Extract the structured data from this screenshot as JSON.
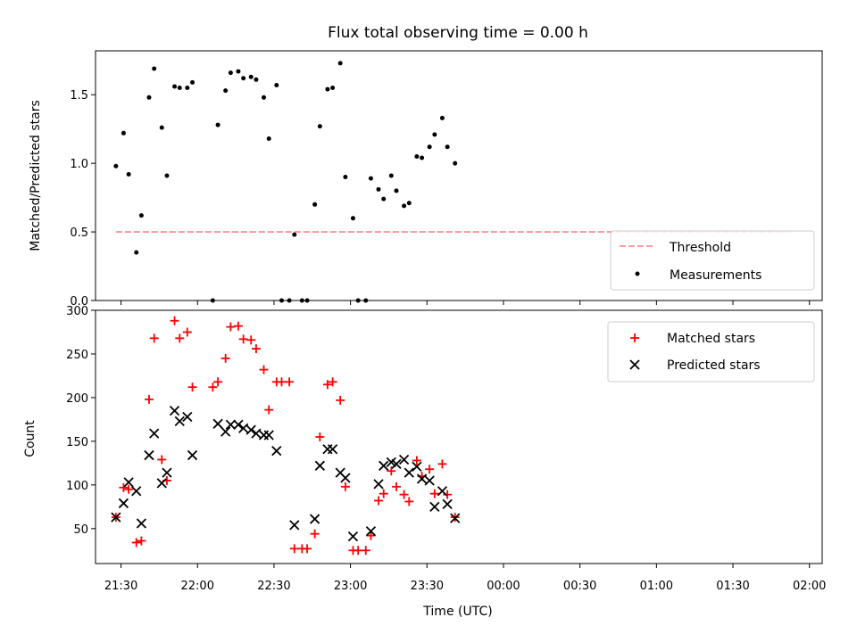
{
  "chart_data": [
    {
      "type": "scatter",
      "title": "Flux total observing time = 0.00 h",
      "xlabel": "",
      "ylabel": "Matched/Predicted stars",
      "ylim": [
        0,
        1.82
      ],
      "yticks": [
        0.0,
        0.5,
        1.0,
        1.5
      ],
      "xlim": [
        "21:20",
        "02:05"
      ],
      "grid": false,
      "legend_position": "lower-right",
      "series": [
        {
          "name": "Threshold",
          "kind": "dashed-line",
          "color": "#ff8080",
          "points": [
            [
              "21:28",
              0.5
            ],
            [
              "01:53",
              0.5
            ]
          ]
        },
        {
          "name": "Measurements",
          "kind": "points",
          "color": "#000000",
          "points": [
            [
              "21:28",
              0.98
            ],
            [
              "21:31",
              1.22
            ],
            [
              "21:33",
              0.92
            ],
            [
              "21:36",
              0.35
            ],
            [
              "21:38",
              0.62
            ],
            [
              "21:41",
              1.48
            ],
            [
              "21:43",
              1.69
            ],
            [
              "21:46",
              1.26
            ],
            [
              "21:48",
              0.91
            ],
            [
              "21:51",
              1.56
            ],
            [
              "21:53",
              1.55
            ],
            [
              "21:56",
              1.55
            ],
            [
              "21:58",
              1.59
            ],
            [
              "22:06",
              0.0
            ],
            [
              "22:08",
              1.28
            ],
            [
              "22:11",
              1.53
            ],
            [
              "22:13",
              1.66
            ],
            [
              "22:16",
              1.67
            ],
            [
              "22:18",
              1.62
            ],
            [
              "22:21",
              1.63
            ],
            [
              "22:23",
              1.61
            ],
            [
              "22:26",
              1.48
            ],
            [
              "22:28",
              1.18
            ],
            [
              "22:31",
              1.57
            ],
            [
              "22:33",
              0.0
            ],
            [
              "22:36",
              0.0
            ],
            [
              "22:38",
              0.48
            ],
            [
              "22:41",
              0.0
            ],
            [
              "22:43",
              0.0
            ],
            [
              "22:46",
              0.7
            ],
            [
              "22:48",
              1.27
            ],
            [
              "22:51",
              1.54
            ],
            [
              "22:53",
              1.55
            ],
            [
              "22:56",
              1.73
            ],
            [
              "22:58",
              0.9
            ],
            [
              "23:01",
              0.6
            ],
            [
              "23:03",
              0.0
            ],
            [
              "23:06",
              0.0
            ],
            [
              "23:08",
              0.89
            ],
            [
              "23:11",
              0.81
            ],
            [
              "23:13",
              0.74
            ],
            [
              "23:16",
              0.91
            ],
            [
              "23:18",
              0.8
            ],
            [
              "23:21",
              0.69
            ],
            [
              "23:23",
              0.71
            ],
            [
              "23:26",
              1.05
            ],
            [
              "23:28",
              1.04
            ],
            [
              "23:31",
              1.12
            ],
            [
              "23:33",
              1.21
            ],
            [
              "23:36",
              1.33
            ],
            [
              "23:38",
              1.12
            ],
            [
              "23:41",
              1.0
            ]
          ]
        }
      ]
    },
    {
      "type": "scatter",
      "title": "",
      "xlabel": "Time (UTC)",
      "ylabel": "Count",
      "ylim": [
        10,
        300
      ],
      "yticks": [
        50,
        100,
        150,
        200,
        250,
        300
      ],
      "xlim": [
        "21:20",
        "02:05"
      ],
      "xticks": [
        "21:30",
        "22:00",
        "22:30",
        "23:00",
        "23:30",
        "00:00",
        "00:30",
        "01:00",
        "01:30",
        "02:00"
      ],
      "grid": false,
      "legend_position": "upper-right",
      "series": [
        {
          "name": "Matched stars",
          "marker": "plus",
          "color": "#ff0000",
          "points": [
            [
              "21:28",
              63
            ],
            [
              "21:31",
              97
            ],
            [
              "21:33",
              95
            ],
            [
              "21:36",
              34
            ],
            [
              "21:38",
              36
            ],
            [
              "21:41",
              198
            ],
            [
              "21:43",
              268
            ],
            [
              "21:46",
              129
            ],
            [
              "21:48",
              105
            ],
            [
              "21:51",
              288
            ],
            [
              "21:53",
              268
            ],
            [
              "21:56",
              275
            ],
            [
              "21:58",
              212
            ],
            [
              "22:06",
              212
            ],
            [
              "22:08",
              218
            ],
            [
              "22:11",
              245
            ],
            [
              "22:13",
              281
            ],
            [
              "22:16",
              282
            ],
            [
              "22:18",
              267
            ],
            [
              "22:21",
              266
            ],
            [
              "22:23",
              256
            ],
            [
              "22:26",
              232
            ],
            [
              "22:28",
              186
            ],
            [
              "22:31",
              218
            ],
            [
              "22:33",
              218
            ],
            [
              "22:36",
              218
            ],
            [
              "22:38",
              27
            ],
            [
              "22:41",
              27
            ],
            [
              "22:43",
              27
            ],
            [
              "22:46",
              44
            ],
            [
              "22:48",
              155
            ],
            [
              "22:51",
              215
            ],
            [
              "22:53",
              218
            ],
            [
              "22:56",
              197
            ],
            [
              "22:58",
              98
            ],
            [
              "23:01",
              25
            ],
            [
              "23:03",
              25
            ],
            [
              "23:06",
              25
            ],
            [
              "23:08",
              42
            ],
            [
              "23:11",
              82
            ],
            [
              "23:13",
              90
            ],
            [
              "23:16",
              116
            ],
            [
              "23:18",
              98
            ],
            [
              "23:21",
              89
            ],
            [
              "23:23",
              81
            ],
            [
              "23:26",
              128
            ],
            [
              "23:28",
              110
            ],
            [
              "23:31",
              118
            ],
            [
              "23:33",
              90
            ],
            [
              "23:36",
              124
            ],
            [
              "23:38",
              89
            ],
            [
              "23:41",
              63
            ]
          ]
        },
        {
          "name": "Predicted stars",
          "marker": "x",
          "color": "#000000",
          "points": [
            [
              "21:28",
              63
            ],
            [
              "21:31",
              79
            ],
            [
              "21:33",
              103
            ],
            [
              "21:36",
              93
            ],
            [
              "21:38",
              56
            ],
            [
              "21:41",
              134
            ],
            [
              "21:43",
              159
            ],
            [
              "21:46",
              102
            ],
            [
              "21:48",
              114
            ],
            [
              "21:51",
              185
            ],
            [
              "21:53",
              173
            ],
            [
              "21:56",
              178
            ],
            [
              "21:58",
              134
            ],
            [
              "22:08",
              170
            ],
            [
              "22:11",
              161
            ],
            [
              "22:13",
              169
            ],
            [
              "22:16",
              169
            ],
            [
              "22:18",
              165
            ],
            [
              "22:21",
              163
            ],
            [
              "22:23",
              159
            ],
            [
              "22:26",
              157
            ],
            [
              "22:28",
              157
            ],
            [
              "22:31",
              139
            ],
            [
              "22:38",
              54
            ],
            [
              "22:46",
              61
            ],
            [
              "22:48",
              122
            ],
            [
              "22:51",
              141
            ],
            [
              "22:53",
              141
            ],
            [
              "22:56",
              114
            ],
            [
              "22:58",
              108
            ],
            [
              "23:01",
              41
            ],
            [
              "23:08",
              47
            ],
            [
              "23:11",
              101
            ],
            [
              "23:13",
              122
            ],
            [
              "23:16",
              126
            ],
            [
              "23:18",
              124
            ],
            [
              "23:21",
              129
            ],
            [
              "23:23",
              114
            ],
            [
              "23:26",
              121
            ],
            [
              "23:28",
              107
            ],
            [
              "23:31",
              105
            ],
            [
              "23:33",
              75
            ],
            [
              "23:36",
              93
            ],
            [
              "23:38",
              78
            ],
            [
              "23:41",
              62
            ]
          ]
        }
      ]
    }
  ]
}
